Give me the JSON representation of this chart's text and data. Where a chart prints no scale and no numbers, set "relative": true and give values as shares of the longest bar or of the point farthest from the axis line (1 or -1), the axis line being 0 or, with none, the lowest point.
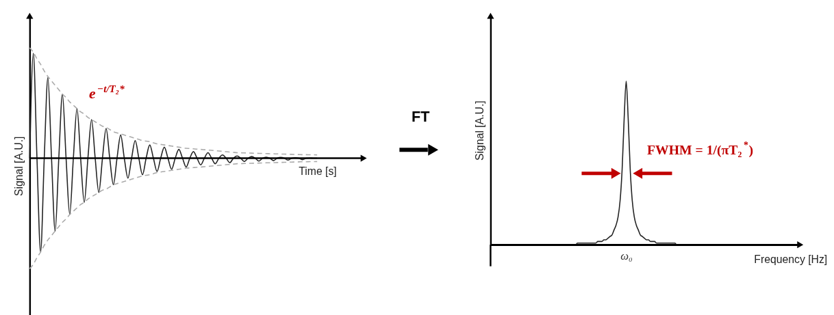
{
  "chart_data": [
    {
      "type": "line",
      "relative": true,
      "ylabel": "Signal [A.U.]",
      "xlabel": "Time [s]",
      "tick_labels": false,
      "annotations": [
        "e$^{−t/T₂*}$"
      ],
      "categories": [
        null,
        null,
        null,
        null,
        null,
        null,
        null,
        null,
        null,
        null,
        null,
        null,
        null,
        null,
        null,
        null,
        null,
        null,
        null,
        null,
        null,
        null,
        null,
        null,
        null,
        null,
        null,
        null,
        null,
        null,
        null,
        null,
        null,
        null,
        null,
        null,
        null,
        null,
        null,
        null,
        null,
        null,
        null,
        null,
        null,
        null,
        null,
        null,
        null,
        null,
        null,
        null,
        null,
        null,
        null,
        null,
        null,
        null,
        null,
        null,
        null,
        null,
        null,
        null,
        null,
        null,
        null,
        null,
        null,
        null,
        null,
        null,
        null,
        null,
        null,
        null,
        null,
        null,
        null,
        null
      ],
      "series": [
        {
          "color": "#222222",
          "line_style": "solid",
          "values": [
            0,
            0.95,
            0,
            -0.85,
            0,
            0.73,
            0,
            -0.66,
            0,
            0.58,
            0,
            -0.51,
            0,
            0.45,
            0,
            -0.4,
            0,
            0.35,
            0,
            -0.31,
            0,
            0.27,
            0,
            -0.24,
            0,
            0.21,
            0,
            -0.18,
            0,
            0.16,
            0,
            -0.15,
            0,
            0.12,
            0,
            -0.12,
            0,
            0.1,
            0,
            -0.1,
            0,
            0.08,
            0,
            -0.08,
            0,
            0.06,
            0,
            -0.06,
            0,
            0.05,
            0,
            -0.05,
            0,
            0.03,
            0,
            -0.04,
            0,
            0.02,
            0,
            -0.03,
            0,
            0.015,
            0,
            -0.026,
            0,
            0.01,
            0,
            -0.022,
            0,
            0.007,
            0,
            -0.017,
            0,
            0.004,
            0,
            -0.013,
            0,
            0.002,
            0,
            0
          ]
        },
        {
          "color": "#aaaaaa",
          "line_style": "dashed",
          "values": [
            1,
            0.96,
            0.9,
            0.85,
            0.79,
            0.74,
            0.7,
            0.66,
            0.62,
            0.58,
            0.55,
            0.51,
            0.48,
            0.45,
            0.42,
            0.4,
            0.37,
            0.35,
            0.33,
            0.31,
            0.29,
            0.28,
            0.26,
            0.24,
            0.23,
            0.22,
            0.21,
            0.2,
            0.19,
            0.18,
            0.17,
            0.16,
            0.155,
            0.15,
            0.14,
            0.13,
            0.125,
            0.12,
            0.115,
            0.11,
            0.105,
            0.1,
            0.095,
            0.09,
            0.088,
            0.085,
            0.082,
            0.08,
            0.077,
            0.074,
            0.071,
            0.068,
            0.065,
            0.062,
            0.059,
            0.056,
            0.053,
            0.05,
            0.049,
            0.048,
            0.047,
            0.046,
            0.045,
            0.044,
            0.043,
            0.042,
            0.041,
            0.04,
            0.039,
            0.038,
            0.037,
            0.036,
            0.035,
            0.034,
            0.033,
            0.032,
            0.032,
            0.031,
            0.031,
            0.03
          ]
        },
        {
          "color": "#aaaaaa",
          "line_style": "dashed",
          "values": [
            -1,
            -0.96,
            -0.9,
            -0.85,
            -0.79,
            -0.74,
            -0.7,
            -0.66,
            -0.62,
            -0.58,
            -0.55,
            -0.51,
            -0.48,
            -0.45,
            -0.42,
            -0.4,
            -0.37,
            -0.35,
            -0.33,
            -0.31,
            -0.29,
            -0.28,
            -0.26,
            -0.24,
            -0.23,
            -0.22,
            -0.21,
            -0.2,
            -0.19,
            -0.18,
            -0.17,
            -0.16,
            -0.155,
            -0.15,
            -0.14,
            -0.13,
            -0.125,
            -0.12,
            -0.115,
            -0.11,
            -0.105,
            -0.1,
            -0.095,
            -0.09,
            -0.088,
            -0.085,
            -0.082,
            -0.08,
            -0.077,
            -0.074,
            -0.071,
            -0.068,
            -0.065,
            -0.062,
            -0.059,
            -0.056,
            -0.053,
            -0.05,
            -0.049,
            -0.048,
            -0.047,
            -0.046,
            -0.045,
            -0.044,
            -0.043,
            -0.042,
            -0.041,
            -0.04,
            -0.039,
            -0.038,
            -0.037,
            -0.036,
            -0.035,
            -0.034,
            -0.033,
            -0.032,
            -0.032,
            -0.031,
            -0.031,
            -0.03
          ]
        }
      ]
    },
    {
      "type": "line",
      "relative": true,
      "ylabel": "Signal [A.U.]",
      "xlabel": "Frequency [Hz]",
      "tick_labels": false,
      "annotations": [
        "FT",
        "FWHM = 1/(πT₂$^{*}$)",
        "ω₀"
      ],
      "categories": [
        null,
        null,
        null,
        null,
        null,
        null,
        null,
        null,
        null,
        null,
        null,
        null,
        null,
        null,
        null,
        null,
        null,
        null,
        null,
        null,
        null,
        null,
        null,
        null,
        null,
        null,
        null,
        null,
        null,
        null,
        null,
        null,
        null,
        null,
        null,
        null,
        null,
        null,
        null,
        null,
        null,
        null,
        null,
        null,
        null,
        null,
        null,
        null,
        null,
        null,
        null,
        null,
        null,
        null,
        null,
        null,
        null,
        null,
        null,
        null,
        null,
        null,
        null,
        null,
        null,
        null,
        null,
        null,
        null,
        null,
        null,
        null,
        null,
        null,
        null,
        null,
        null,
        null,
        null,
        null,
        null,
        null,
        null,
        null,
        null,
        null,
        null,
        null,
        null,
        null,
        null,
        null,
        null,
        null,
        null,
        null,
        null,
        null,
        null,
        null,
        null,
        null,
        null,
        null,
        null,
        null,
        null,
        null,
        null,
        null,
        null,
        null,
        null,
        null,
        null,
        null,
        null,
        null,
        null,
        null,
        null,
        null,
        null,
        null,
        null,
        null,
        null,
        null,
        null,
        null,
        null,
        null,
        null,
        null,
        null,
        null,
        null,
        null,
        null,
        null,
        null,
        null,
        null,
        null,
        null,
        null,
        null,
        null,
        null,
        null,
        null,
        null,
        null,
        null
      ],
      "series": [
        {
          "color": "#222222",
          "line_style": "solid",
          "values": [
            0,
            0,
            0,
            0,
            0,
            0,
            0,
            0,
            0,
            0,
            0,
            0,
            0,
            0,
            0,
            0,
            0,
            0,
            0,
            0,
            0,
            0,
            0,
            0,
            0,
            0,
            0,
            0,
            0,
            0,
            0,
            0,
            0,
            0,
            0,
            0,
            0,
            0,
            0,
            0,
            0,
            0,
            0,
            0.01,
            0.01,
            0.01,
            0.01,
            0.01,
            0.01,
            0.01,
            0.01,
            0.01,
            0.01,
            0.02,
            0.02,
            0.02,
            0.03,
            0.03,
            0.04,
            0.05,
            0.06,
            0.09,
            0.12,
            0.17,
            0.27,
            0.46,
            0.77,
            1,
            0.77,
            0.46,
            0.27,
            0.17,
            0.12,
            0.09,
            0.06,
            0.05,
            0.04,
            0.03,
            0.03,
            0.02,
            0.02,
            0.02,
            0.01,
            0.01,
            0.01,
            0.01,
            0.01,
            0.01,
            0.01,
            0.01,
            0.01,
            0.01,
            0,
            0,
            0,
            0,
            0,
            0,
            0,
            0,
            0,
            0,
            0,
            0,
            0,
            0,
            0,
            0,
            0,
            0,
            0,
            0,
            0,
            0,
            0,
            0,
            0,
            0,
            0,
            0,
            0,
            0,
            0,
            0,
            0,
            0,
            0,
            0,
            0,
            0,
            0,
            0,
            0,
            0,
            0,
            0,
            null,
            null,
            null,
            null,
            null,
            null,
            null,
            null,
            null,
            null,
            null,
            null,
            null,
            null,
            null,
            null,
            null,
            null
          ]
        }
      ]
    }
  ]
}
